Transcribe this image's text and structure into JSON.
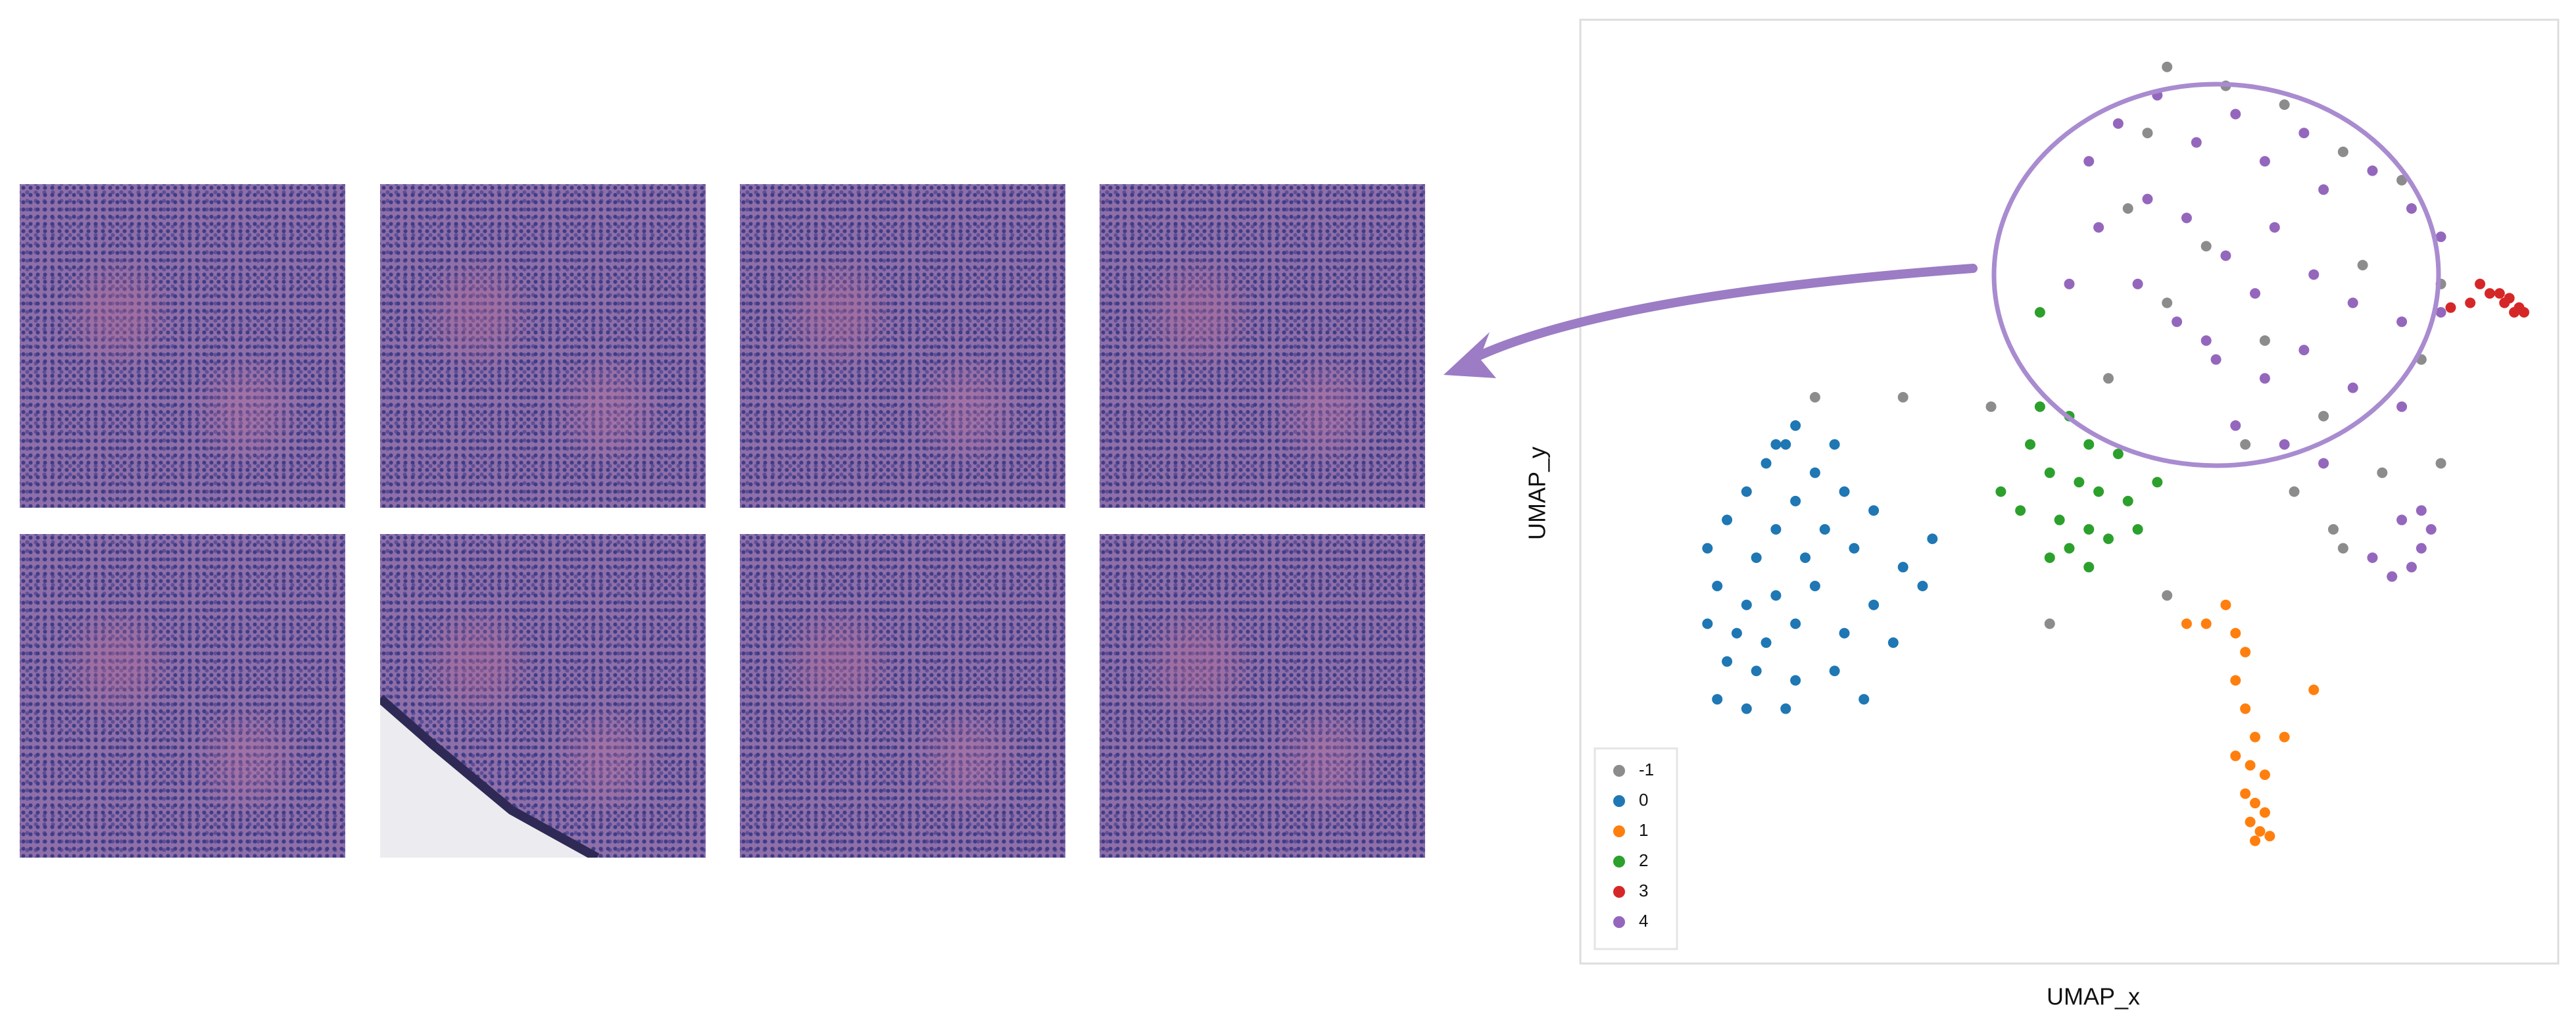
{
  "chart_data": {
    "type": "scatter",
    "x_label": "UMAP_x",
    "y_label": "UMAP_y",
    "xlim": [
      0,
      100
    ],
    "ylim": [
      0,
      100
    ],
    "grid": false,
    "legend": "lower left",
    "series": [
      {
        "name": "-1",
        "color": "#8c8c8c",
        "x": [
          60,
          66,
          72,
          58,
          78,
          84,
          56,
          64,
          80,
          88,
          60,
          70,
          86,
          54,
          76,
          24,
          33,
          42,
          68,
          82,
          73,
          77,
          88,
          60,
          48,
          78
        ],
        "y": [
          95,
          93,
          91,
          88,
          86,
          83,
          80,
          76,
          74,
          72,
          70,
          66,
          64,
          62,
          58,
          60,
          60,
          59,
          55,
          52,
          50,
          46,
          53,
          39,
          36,
          44
        ]
      },
      {
        "name": "0",
        "color": "#1f77b4",
        "x": [
          22,
          21,
          19,
          24,
          17,
          22,
          27,
          15,
          20,
          25,
          30,
          13,
          18,
          23,
          28,
          33,
          14,
          17,
          20,
          24,
          30,
          35,
          13,
          16,
          19,
          22,
          27,
          15,
          18,
          22,
          26,
          14,
          17,
          21,
          29,
          20,
          26,
          36,
          32
        ],
        "y": [
          57,
          55,
          53,
          52,
          50,
          49,
          50,
          47,
          46,
          46,
          48,
          44,
          43,
          43,
          44,
          42,
          40,
          38,
          39,
          40,
          38,
          40,
          36,
          35,
          34,
          36,
          35,
          32,
          31,
          30,
          31,
          28,
          27,
          27,
          28,
          55,
          55,
          45,
          34
        ]
      },
      {
        "name": "1",
        "color": "#ff7f0e",
        "x": [
          66,
          67,
          68,
          67,
          68,
          69,
          68.5,
          70,
          68,
          69,
          70,
          68.5,
          69.5,
          70.5,
          69,
          62,
          64,
          75,
          72,
          67
        ],
        "y": [
          38,
          35,
          33,
          30,
          27,
          24,
          21,
          20,
          18,
          17,
          16,
          15,
          14,
          13.5,
          13,
          36,
          36,
          29,
          24,
          22
        ]
      },
      {
        "name": "2",
        "color": "#2ca02c",
        "x": [
          47,
          50,
          46,
          52,
          55,
          48,
          51,
          53,
          56,
          45,
          49,
          52,
          54,
          57,
          50,
          48,
          52,
          43,
          47,
          59
        ],
        "y": [
          59,
          58,
          55,
          55,
          54,
          52,
          51,
          50,
          49,
          48,
          47,
          46,
          45,
          46,
          44,
          43,
          42,
          50,
          69,
          51
        ]
      },
      {
        "name": "3",
        "color": "#d62728",
        "x": [
          92,
          93,
          94,
          94.5,
          95,
          96,
          95.5,
          96.5,
          91,
          89
        ],
        "y": [
          72,
          71,
          71,
          70,
          70.5,
          69.5,
          69,
          69,
          70,
          69.5
        ]
      },
      {
        "name": "4",
        "color": "#9467bd",
        "x": [
          52,
          55,
          59,
          63,
          67,
          70,
          74,
          76,
          81,
          85,
          88,
          53,
          58,
          62,
          66,
          71,
          75,
          79,
          84,
          88,
          57,
          61,
          65,
          70,
          74,
          79,
          84,
          67,
          72,
          76,
          64,
          69,
          50,
          86,
          87,
          85,
          86,
          84,
          83,
          81
        ],
        "y": [
          85,
          89,
          92,
          87,
          90,
          85,
          88,
          82,
          84,
          80,
          77,
          78,
          81,
          79,
          75,
          78,
          73,
          70,
          68,
          69,
          72,
          68,
          64,
          62,
          65,
          61,
          59,
          57,
          55,
          53,
          66,
          71,
          72,
          44,
          46,
          42,
          48,
          47,
          41,
          43
        ]
      }
    ]
  }
}
